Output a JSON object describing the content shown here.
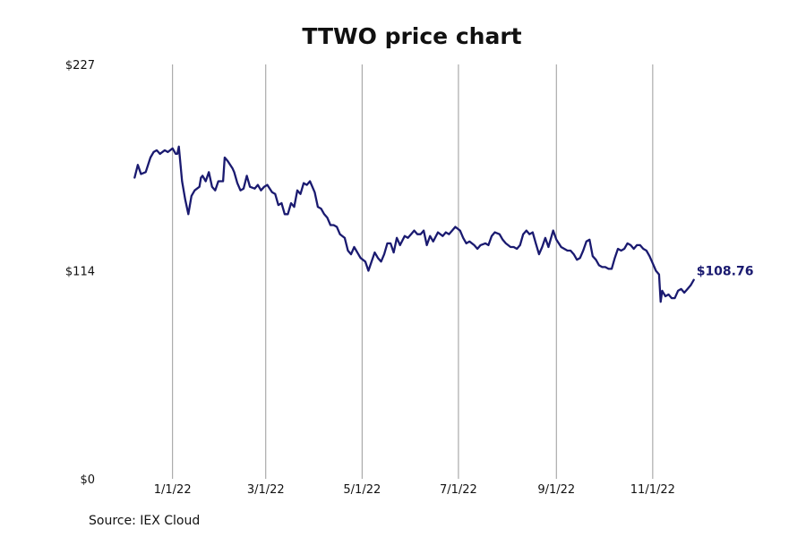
{
  "chart_data": {
    "type": "line",
    "title": "TTWO price chart",
    "xlabel": "",
    "ylabel": "",
    "y_ticks": [
      {
        "value": 0,
        "label": "$0"
      },
      {
        "value": 114,
        "label": "$114"
      },
      {
        "value": 227,
        "label": "$227"
      }
    ],
    "ylim": [
      0,
      227
    ],
    "xlim": [
      "2021-12-01",
      "2022-11-30"
    ],
    "x_ticks": [
      {
        "date": "2022-01-01",
        "label": "1/1/22"
      },
      {
        "date": "2022-03-01",
        "label": "3/1/22"
      },
      {
        "date": "2022-05-01",
        "label": "5/1/22"
      },
      {
        "date": "2022-07-01",
        "label": "7/1/22"
      },
      {
        "date": "2022-09-01",
        "label": "9/1/22"
      },
      {
        "date": "2022-11-01",
        "label": "11/1/22"
      }
    ],
    "grid": "vertical",
    "series": [
      {
        "name": "",
        "color": "#1a1a70",
        "x": [
          "2021-12-08",
          "2021-12-10",
          "2021-12-12",
          "2021-12-15",
          "2021-12-18",
          "2021-12-20",
          "2021-12-22",
          "2021-12-24",
          "2021-12-27",
          "2021-12-29",
          "2022-01-01",
          "2022-01-03",
          "2022-01-04",
          "2022-01-05",
          "2022-01-07",
          "2022-01-09",
          "2022-01-11",
          "2022-01-13",
          "2022-01-15",
          "2022-01-18",
          "2022-01-19",
          "2022-01-20",
          "2022-01-22",
          "2022-01-24",
          "2022-01-26",
          "2022-01-28",
          "2022-01-30",
          "2022-02-02",
          "2022-02-03",
          "2022-02-05",
          "2022-02-08",
          "2022-02-09",
          "2022-02-11",
          "2022-02-13",
          "2022-02-15",
          "2022-02-17",
          "2022-02-19",
          "2022-02-22",
          "2022-02-24",
          "2022-02-26",
          "2022-02-28",
          "2022-03-02",
          "2022-03-05",
          "2022-03-07",
          "2022-03-09",
          "2022-03-11",
          "2022-03-13",
          "2022-03-15",
          "2022-03-17",
          "2022-03-19",
          "2022-03-21",
          "2022-03-23",
          "2022-03-25",
          "2022-03-27",
          "2022-03-29",
          "2022-04-01",
          "2022-04-03",
          "2022-04-05",
          "2022-04-07",
          "2022-04-09",
          "2022-04-11",
          "2022-04-13",
          "2022-04-15",
          "2022-04-17",
          "2022-04-20",
          "2022-04-22",
          "2022-04-24",
          "2022-04-26",
          "2022-04-28",
          "2022-04-30",
          "2022-05-03",
          "2022-05-05",
          "2022-05-07",
          "2022-05-09",
          "2022-05-11",
          "2022-05-13",
          "2022-05-15",
          "2022-05-17",
          "2022-05-19",
          "2022-05-21",
          "2022-05-23",
          "2022-05-25",
          "2022-05-28",
          "2022-05-30",
          "2022-06-01",
          "2022-06-03",
          "2022-06-05",
          "2022-06-07",
          "2022-06-09",
          "2022-06-11",
          "2022-06-13",
          "2022-06-15",
          "2022-06-18",
          "2022-06-21",
          "2022-06-23",
          "2022-06-25",
          "2022-06-27",
          "2022-06-29",
          "2022-07-02",
          "2022-07-04",
          "2022-07-06",
          "2022-07-08",
          "2022-07-11",
          "2022-07-13",
          "2022-07-15",
          "2022-07-18",
          "2022-07-20",
          "2022-07-22",
          "2022-07-24",
          "2022-07-27",
          "2022-07-29",
          "2022-07-31",
          "2022-08-03",
          "2022-08-05",
          "2022-08-07",
          "2022-08-09",
          "2022-08-11",
          "2022-08-13",
          "2022-08-15",
          "2022-08-17",
          "2022-08-19",
          "2022-08-21",
          "2022-08-23",
          "2022-08-25",
          "2022-08-27",
          "2022-08-30",
          "2022-09-01",
          "2022-09-04",
          "2022-09-06",
          "2022-09-08",
          "2022-09-10",
          "2022-09-12",
          "2022-09-14",
          "2022-09-16",
          "2022-09-18",
          "2022-09-20",
          "2022-09-22",
          "2022-09-24",
          "2022-09-26",
          "2022-09-28",
          "2022-09-30",
          "2022-10-02",
          "2022-10-04",
          "2022-10-06",
          "2022-10-08",
          "2022-10-10",
          "2022-10-12",
          "2022-10-14",
          "2022-10-16",
          "2022-10-18",
          "2022-10-20",
          "2022-10-22",
          "2022-10-24",
          "2022-10-26",
          "2022-10-28",
          "2022-10-30",
          "2022-11-01",
          "2022-11-03",
          "2022-11-05",
          "2022-11-06",
          "2022-11-07",
          "2022-11-09",
          "2022-11-11",
          "2022-11-13",
          "2022-11-15",
          "2022-11-17",
          "2022-11-19",
          "2022-11-21",
          "2022-11-23",
          "2022-11-25",
          "2022-11-27"
        ],
        "values": [
          165,
          172,
          167,
          168,
          176,
          179,
          180,
          178,
          180,
          179,
          181,
          178,
          178,
          182,
          163,
          153,
          145,
          155,
          158,
          160,
          165,
          166,
          163,
          168,
          160,
          158,
          163,
          163,
          176,
          174,
          170,
          168,
          162,
          158,
          159,
          166,
          160,
          159,
          161,
          158,
          160,
          161,
          157,
          156,
          150,
          151,
          145,
          145,
          151,
          149,
          158,
          156,
          162,
          161,
          163,
          157,
          149,
          148,
          145,
          143,
          139,
          139,
          138,
          134,
          132,
          125,
          123,
          127,
          124,
          121,
          119,
          114,
          119,
          124,
          121,
          119,
          123,
          129,
          129,
          124,
          132,
          128,
          133,
          132,
          134,
          136,
          134,
          134,
          136,
          128,
          133,
          130,
          135,
          133,
          135,
          134,
          136,
          138,
          136,
          132,
          129,
          130,
          128,
          126,
          128,
          129,
          128,
          133,
          135,
          134,
          131,
          129,
          127,
          127,
          126,
          128,
          134,
          136,
          134,
          135,
          129,
          123,
          127,
          132,
          127,
          136,
          131,
          127,
          126,
          125,
          125,
          123,
          120,
          121,
          125,
          130,
          131,
          122,
          120,
          117,
          116,
          116,
          115,
          115,
          121,
          126,
          125,
          126,
          129,
          128,
          126,
          128,
          128,
          126,
          125,
          122,
          118,
          114,
          112,
          97,
          103,
          100,
          101,
          99,
          99,
          103,
          104,
          102,
          104,
          106,
          109
        ]
      }
    ],
    "end_label": "$108.76",
    "source": "Source: IEX Cloud"
  }
}
